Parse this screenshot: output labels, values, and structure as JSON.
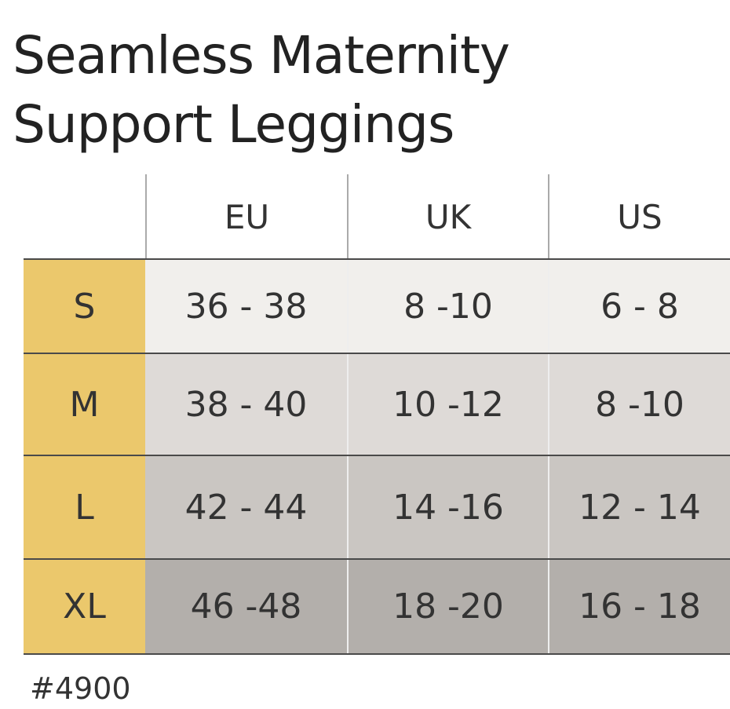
{
  "title_lines": [
    "Seamless Maternity",
    "Support Leggings"
  ],
  "table": {
    "header": [
      "EU",
      "UK",
      "US"
    ],
    "rows": [
      [
        "S",
        "36 - 38",
        "8 -10",
        "6 - 8"
      ],
      [
        "M",
        "38 - 40",
        "10 -12",
        "8 -10"
      ],
      [
        "L",
        "42 - 44",
        "14 -16",
        "12 - 14"
      ],
      [
        "XL",
        "46 -48",
        "18 -20",
        "16 - 18"
      ]
    ]
  },
  "footer": "#4900"
}
